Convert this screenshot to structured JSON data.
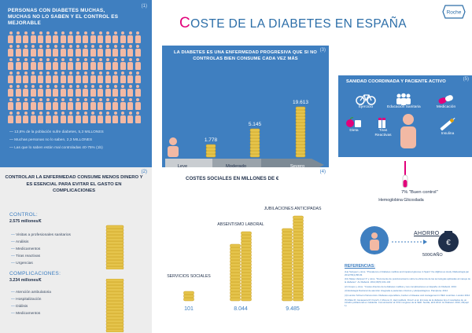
{
  "title": {
    "first_letter": "C",
    "rest": "OSTE DE LA DIABETES EN ESPAÑA"
  },
  "logo": {
    "text": "Roche"
  },
  "colors": {
    "blue_panel": "#3f7fc0",
    "magenta": "#e2007a",
    "skin": "#f2b9a4",
    "coin": "#e5c44c",
    "coin_edge": "#c99e1e",
    "grey_panel": "#ededed"
  },
  "panel1": {
    "number": "(1)",
    "title": "PERSONAS CON DIABETES MUCHAS, MUCHAS NO LO SABEN Y EL CONTROL ES MEJORABLE",
    "people_icon": "person-icon",
    "stats": [
      "13,8% de la población sufre diabetes, 5,3 MILLONES",
      "Muchas personas no lo saben, 2,3 MILLONES",
      "Las que lo saben están mal controladas 40-75% (1b)"
    ]
  },
  "panel2": {
    "number": "(2)",
    "title": "CONTROLAR LA ENFERMEDAD CONSUME MENOS DINERO Y ES ESENCIAL PARA EVITAR EL GASTO EN COMPLICACIONES",
    "control": {
      "heading": "CONTROL:",
      "total": "2.575 millones/€",
      "items": [
        "Visitas a profesionales sanitarios",
        "Análisis",
        "Medicamentos",
        "Tiras reactivas",
        "Urgencias"
      ]
    },
    "complications": {
      "heading": "COMPLICACIONES:",
      "total": "3.234 millones/€",
      "items": [
        "Atención ambulatoria",
        "Hospitalización",
        "Diálisis",
        "Medicamentos"
      ]
    }
  },
  "panel3": {
    "number": "(3)",
    "title": "LA DIABETES ES UNA ENFERMEDAD PROGRESIVA QUE SI NO CONTROLAS BIEN CONSUME CADA VEZ MÁS",
    "stages": [
      {
        "label": "Leve",
        "value": "1.778"
      },
      {
        "label": "Moderado",
        "value": "5.145"
      },
      {
        "label": "Severo",
        "value": "19.613"
      }
    ]
  },
  "panel4": {
    "number": "(4)",
    "title": "COSTES SOCIALES EN MILLONES DE €",
    "bars": [
      {
        "label": "SERVICIOS SOCIALES",
        "value": "101"
      },
      {
        "label": "ABSENTISMO LABORAL",
        "value": "8.044"
      },
      {
        "label": "JUBILACIONES ANTICIPADAS",
        "value": "9.485"
      }
    ]
  },
  "panel5": {
    "number": "(5)",
    "title": "SANIDAD COORDINADA Y PACIENTE ACTIVO",
    "items": [
      {
        "label": "Ejercicio",
        "icon": "bicycle-icon"
      },
      {
        "label": "Educación Sanitaria",
        "icon": "group-icon"
      },
      {
        "label": "Medicación",
        "icon": "pill-icon"
      },
      {
        "label": "Dieta",
        "icon": "food-icon"
      },
      {
        "label": "Tiras Reactivas",
        "icon": "test-strips-icon"
      },
      {
        "label": "Insulina",
        "icon": "insulin-pen-icon"
      }
    ]
  },
  "panel6": {
    "hb_percent": "7% \"Buen control\"",
    "hb_label": "Hemoglobina Glicosilada",
    "ahorro": "AHORRO",
    "ahorro_value": "500€/AÑO"
  },
  "references": {
    "heading": "REFERENCIAS:",
    "items": [
      "(1a) Soriguer y otros. \"Prevalence of diabetes mellitus and impaired glucose in Spain\" the di@bet.es study. Diabetologia jan 2012;55(1):88-93.",
      "(1b) Mateo Vazquez P. y otros. \"Documento de posicionamiento sobre la eficiencia de las tecnologías aplicadas al manejo de la diabetes\". Av Diabetol. 2014;30(5):131-140",
      "(2) Crespo y otros. \"Costes directos de la diabetes mellitus y sus complicaciones en España. Av Diabetol. 2013",
      "(3) Estrategia Nacional de atención integrada a pacientes crónicos y pluripatológicos. Pamplona. 2014",
      "(4) London School of Economics. Diabetes expenditure, burden of disease and management in 5EU countries. London 2012",
      "(5) Mata M, Cavaquera M, Franch J, Moreno O, Hermosilla E, Fina F et al. El coste de la diabetes tipo 2 resultados de un estudio poblacional en Cataluña. Comunicación al XXIV congreso de la SED. Sevilla, abril 2013. Av Diabetol. 2013; 29(supl 1)"
    ]
  }
}
